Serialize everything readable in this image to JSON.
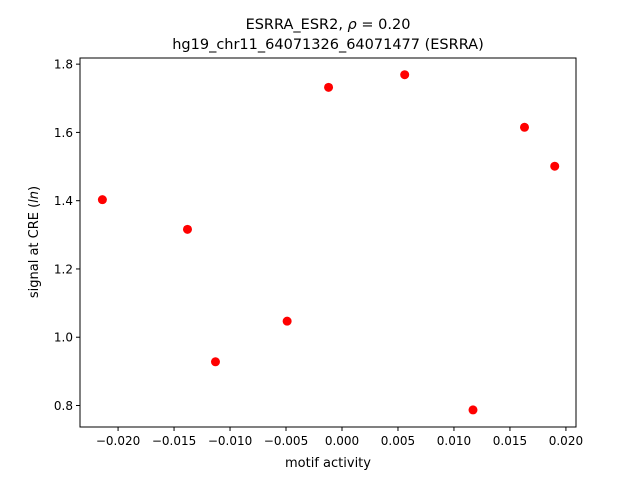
{
  "chart_data": {
    "type": "scatter",
    "title_line1_prefix": "ESRRA_ESR2, ",
    "title_rho_symbol": "ρ",
    "title_rho_value": " = 0.20",
    "title_line2": "hg19_chr11_64071326_64071477 (ESRRA)",
    "xlabel": "motif activity",
    "ylabel_prefix": "signal at CRE (",
    "ylabel_italic": "ln",
    "ylabel_suffix": ")",
    "xlim": [
      -0.0234,
      0.0209
    ],
    "ylim": [
      0.737,
      1.818
    ],
    "x_ticks": [
      {
        "value": -0.02,
        "label": "−0.020"
      },
      {
        "value": -0.015,
        "label": "−0.015"
      },
      {
        "value": -0.01,
        "label": "−0.010"
      },
      {
        "value": -0.005,
        "label": "−0.005"
      },
      {
        "value": 0.0,
        "label": "0.000"
      },
      {
        "value": 0.005,
        "label": "0.005"
      },
      {
        "value": 0.01,
        "label": "0.010"
      },
      {
        "value": 0.015,
        "label": "0.015"
      },
      {
        "value": 0.02,
        "label": "0.020"
      }
    ],
    "y_ticks": [
      {
        "value": 0.8,
        "label": "0.8"
      },
      {
        "value": 1.0,
        "label": "1.0"
      },
      {
        "value": 1.2,
        "label": "1.2"
      },
      {
        "value": 1.4,
        "label": "1.4"
      },
      {
        "value": 1.6,
        "label": "1.6"
      },
      {
        "value": 1.8,
        "label": "1.8"
      }
    ],
    "points": [
      {
        "x": -0.0214,
        "y": 1.403
      },
      {
        "x": -0.0138,
        "y": 1.316
      },
      {
        "x": -0.0113,
        "y": 0.928
      },
      {
        "x": -0.0049,
        "y": 1.047
      },
      {
        "x": -0.0012,
        "y": 1.732
      },
      {
        "x": 0.0056,
        "y": 1.769
      },
      {
        "x": 0.0117,
        "y": 0.787
      },
      {
        "x": 0.0163,
        "y": 1.615
      },
      {
        "x": 0.019,
        "y": 1.501
      }
    ],
    "marker_color": "#ff0000",
    "grid": false,
    "legend": "none"
  }
}
